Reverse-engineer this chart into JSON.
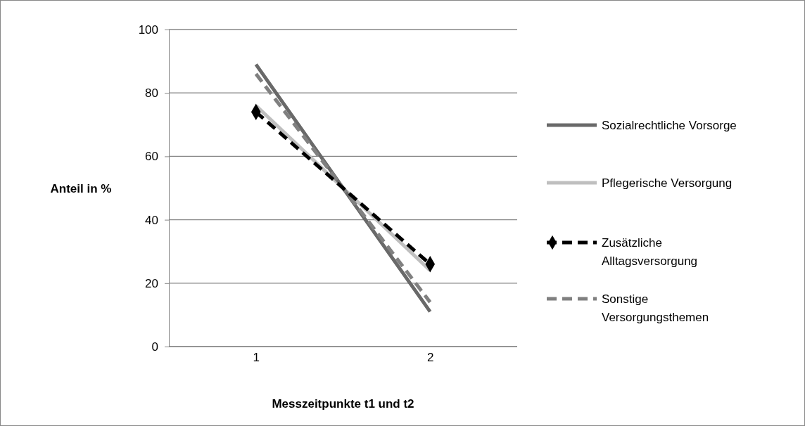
{
  "chart_data": {
    "type": "line",
    "xlabel": "Messzeitpunkte t1 und t2",
    "ylabel": "Anteil in %",
    "categories": [
      "1",
      "2"
    ],
    "ylim": [
      0,
      100
    ],
    "yticks": [
      0,
      20,
      40,
      60,
      80,
      100
    ],
    "grid": "y",
    "legend": "right",
    "series": [
      {
        "name": "Sozialrechtliche Vorsorge",
        "color": "#696969",
        "values": [
          89,
          11
        ],
        "line_style": "solid"
      },
      {
        "name": "Pflegerische Versorgung",
        "color": "#bfbfbf",
        "values": [
          76,
          24
        ],
        "line_style": "solid"
      },
      {
        "name": "Zusätzliche Alltagsversorgung",
        "color": "#000000",
        "values": [
          74,
          26
        ],
        "line_style": "dashed",
        "marker": "diamond"
      },
      {
        "name": "Sonstige Versorgungsthemen",
        "color": "#808080",
        "values": [
          86,
          14
        ],
        "line_style": "dashed"
      }
    ]
  }
}
